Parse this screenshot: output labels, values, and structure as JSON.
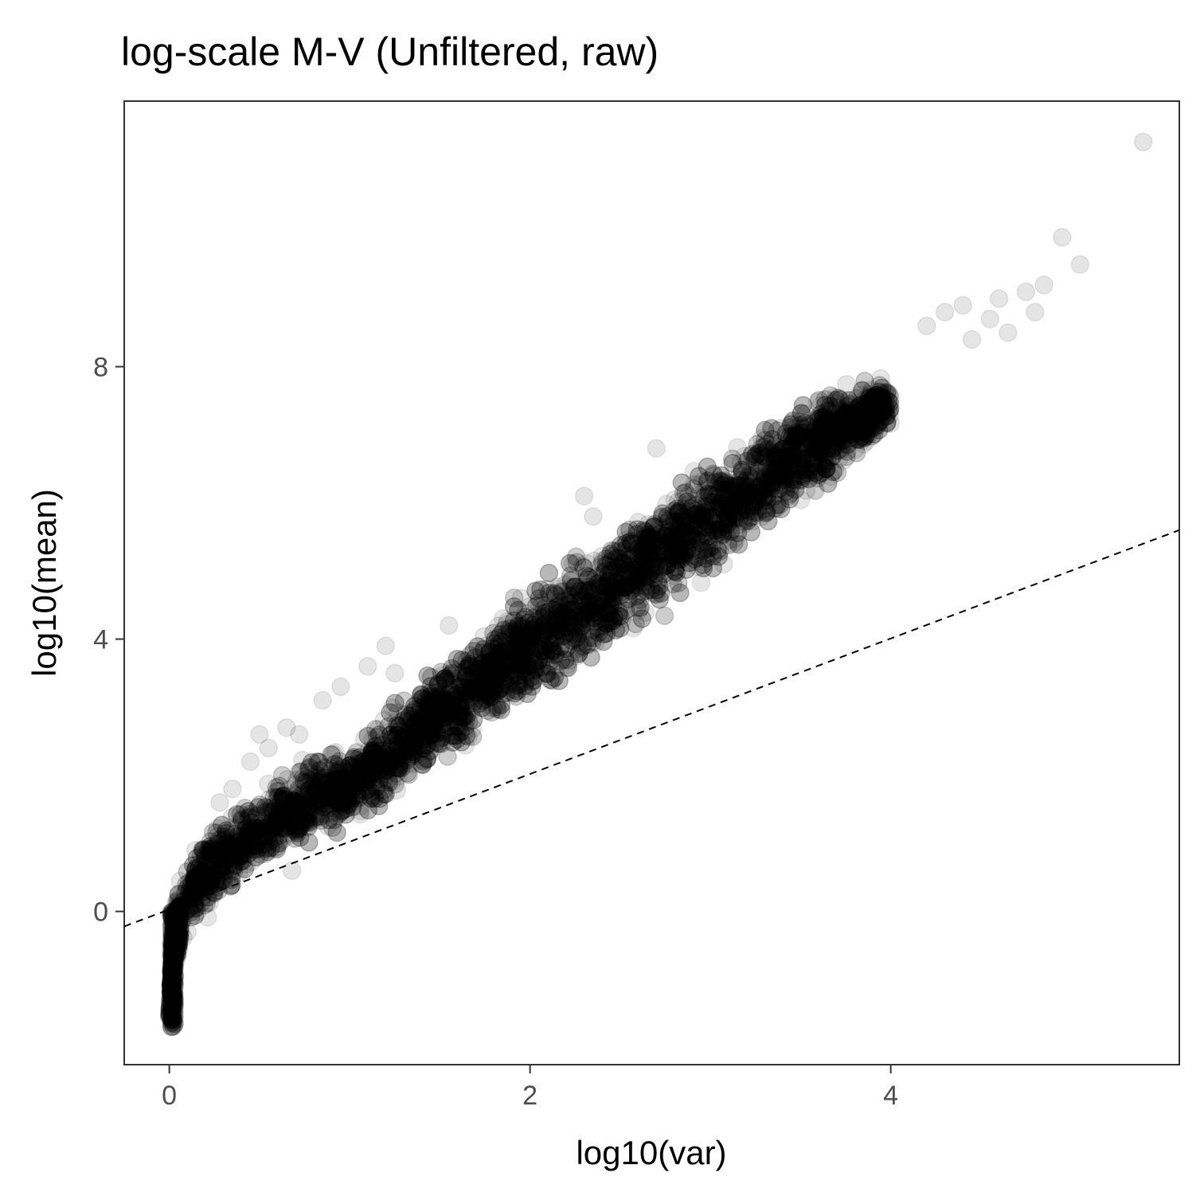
{
  "chart_data": {
    "type": "scatter",
    "title": "log-scale M-V (Unfiltered, raw)",
    "xlabel": "log10(var)",
    "ylabel": "log10(mean)",
    "xlim": [
      -0.25,
      5.6
    ],
    "ylim": [
      -2.25,
      11.9
    ],
    "x_ticks": [
      0,
      2,
      4
    ],
    "y_ticks": [
      0,
      4,
      8
    ],
    "grid": false,
    "legend": "none",
    "point_color": "#000000",
    "point_opacity": 0.1,
    "reference_line": {
      "style": "dashed",
      "color": "#000000",
      "x": [
        -0.25,
        5.6
      ],
      "y": [
        -0.22,
        5.6
      ]
    },
    "band": {
      "x": [
        0,
        0.02,
        0.05,
        0.1,
        0.2,
        0.3,
        0.5,
        0.75,
        1.0,
        1.5,
        2.0,
        2.5,
        3.0,
        3.5,
        3.8,
        4.0
      ],
      "lower": [
        -1.7,
        -1.2,
        -0.8,
        -0.5,
        -0.2,
        0.1,
        0.4,
        0.8,
        1.1,
        2.0,
        2.9,
        3.8,
        4.8,
        5.9,
        6.5,
        7.0
      ],
      "upper": [
        -1.5,
        0.0,
        0.5,
        0.9,
        1.2,
        1.6,
        1.9,
        2.4,
        2.6,
        3.8,
        4.9,
        5.9,
        6.8,
        7.6,
        7.9,
        8.0
      ]
    },
    "outliers": [
      {
        "x": 5.4,
        "y": 11.3
      },
      {
        "x": 4.95,
        "y": 9.9
      },
      {
        "x": 5.05,
        "y": 9.5
      },
      {
        "x": 4.85,
        "y": 9.2
      },
      {
        "x": 4.75,
        "y": 9.1
      },
      {
        "x": 4.6,
        "y": 9.0
      },
      {
        "x": 4.4,
        "y": 8.9
      },
      {
        "x": 4.3,
        "y": 8.8
      },
      {
        "x": 4.55,
        "y": 8.7
      },
      {
        "x": 4.8,
        "y": 8.8
      },
      {
        "x": 4.2,
        "y": 8.6
      },
      {
        "x": 4.65,
        "y": 8.5
      },
      {
        "x": 4.45,
        "y": 8.4
      },
      {
        "x": 2.7,
        "y": 6.8
      },
      {
        "x": 2.3,
        "y": 6.1
      },
      {
        "x": 2.35,
        "y": 5.8
      },
      {
        "x": 1.95,
        "y": 4.6
      },
      {
        "x": 1.55,
        "y": 4.2
      },
      {
        "x": 1.85,
        "y": 4.3
      },
      {
        "x": 1.2,
        "y": 3.9
      },
      {
        "x": 1.25,
        "y": 3.5
      },
      {
        "x": 1.1,
        "y": 3.6
      },
      {
        "x": 0.95,
        "y": 3.3
      },
      {
        "x": 0.85,
        "y": 3.1
      },
      {
        "x": 0.65,
        "y": 2.7
      },
      {
        "x": 0.72,
        "y": 2.6
      },
      {
        "x": 0.55,
        "y": 2.4
      },
      {
        "x": 0.5,
        "y": 2.6
      },
      {
        "x": 0.45,
        "y": 2.2
      },
      {
        "x": 0.35,
        "y": 1.8
      },
      {
        "x": 0.28,
        "y": 1.6
      },
      {
        "x": 0.68,
        "y": 0.6
      }
    ]
  }
}
